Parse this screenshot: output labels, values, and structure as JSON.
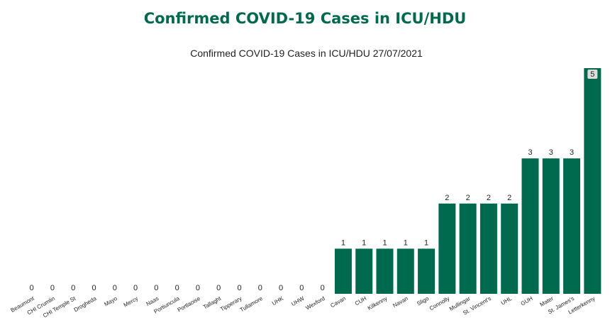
{
  "page": {
    "title": "Confirmed COVID-19 Cases in ICU/HDU"
  },
  "chart_data": {
    "type": "bar",
    "title": "Confirmed COVID-19 Cases in ICU/HDU 27/07/2021",
    "xlabel": "",
    "ylabel": "",
    "ylim": [
      0,
      5
    ],
    "grid": false,
    "bar_color": "#006a4e",
    "categories": [
      "Beaumont",
      "CHI Crumlin",
      "CHI Temple St",
      "Drogheda",
      "Mayo",
      "Mercy",
      "Naas",
      "Portiuncula",
      "Portlaoise",
      "Tallaght",
      "Tipperary",
      "Tullamore",
      "UHK",
      "UHW",
      "Wexford",
      "Cavan",
      "CUH",
      "Kilkenny",
      "Navan",
      "Sligo",
      "Connolly",
      "Mullingar",
      "St. Vincent's",
      "UHL",
      "GUH",
      "Mater",
      "St. James's",
      "Letterkenny"
    ],
    "values": [
      0,
      0,
      0,
      0,
      0,
      0,
      0,
      0,
      0,
      0,
      0,
      0,
      0,
      0,
      0,
      1,
      1,
      1,
      1,
      1,
      2,
      2,
      2,
      2,
      3,
      3,
      3,
      5
    ]
  }
}
